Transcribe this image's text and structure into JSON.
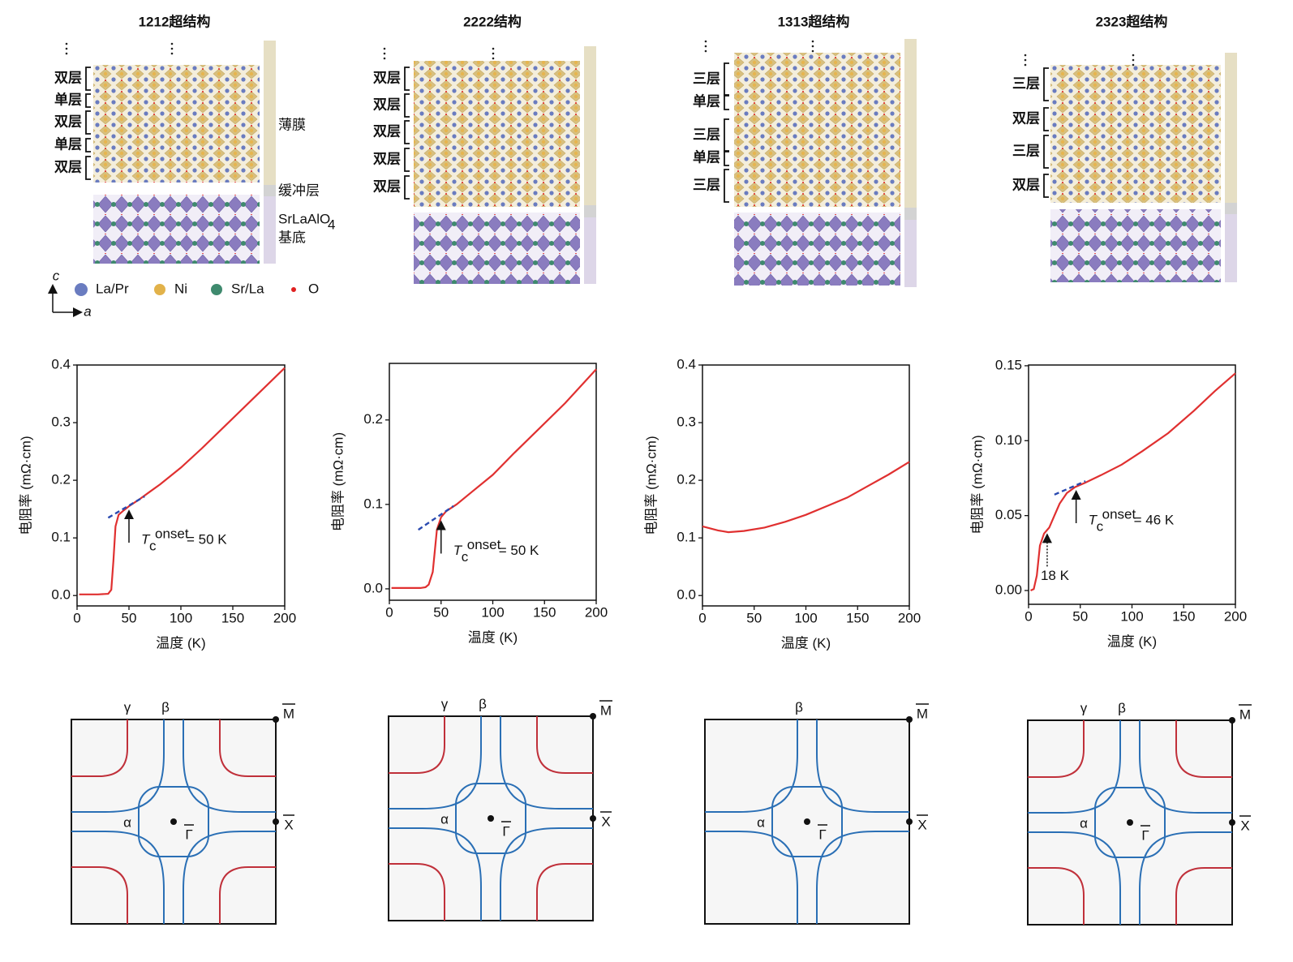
{
  "structures": [
    {
      "title": "1212超结构",
      "layers": [
        "双层",
        "单层",
        "双层",
        "单层",
        "双层"
      ],
      "film_label": "薄膜",
      "buffer_label": "缓冲层",
      "substrate_label": {
        "text": "SrLaAlO",
        "sub": "4",
        "line2": "基底"
      }
    },
    {
      "title": "2222结构",
      "layers": [
        "双层",
        "双层",
        "双层",
        "双层",
        "双层"
      ]
    },
    {
      "title": "1313超结构",
      "layers": [
        "三层",
        "单层",
        "三层",
        "单层",
        "三层"
      ]
    },
    {
      "title": "2323超结构",
      "layers": [
        "三层",
        "双层",
        "三层",
        "双层"
      ]
    }
  ],
  "legend": {
    "axis_c": "c",
    "axis_a": "a",
    "atoms": [
      {
        "name": "La/Pr",
        "color": "#6a7cc0"
      },
      {
        "name": "Ni",
        "color": "#e2b24a"
      },
      {
        "name": "Sr/La",
        "color": "#3f8a6e"
      },
      {
        "name": "O",
        "color": "#e02020"
      }
    ]
  },
  "chart_data": [
    {
      "type": "line",
      "xlabel": "温度 (K)",
      "ylabel": "电阻率 (mΩ·cm)",
      "xlim": [
        0,
        200
      ],
      "xticks": [
        0,
        50,
        100,
        150,
        200
      ],
      "ylim": [
        -0.018,
        0.4
      ],
      "yticks": [
        {
          "value": 0,
          "label": "0.0"
        },
        {
          "value": 0.1,
          "label": "0.1"
        },
        {
          "value": 0.2,
          "label": "0.2"
        },
        {
          "value": 0.3,
          "label": "0.3"
        },
        {
          "value": 0.4,
          "label": "0.4"
        }
      ],
      "series": [
        {
          "color": "#e03030",
          "x": [
            2,
            10,
            20,
            30,
            33,
            35,
            37,
            40,
            45,
            50,
            60,
            70,
            80,
            100,
            120,
            140,
            160,
            180,
            200
          ],
          "values": [
            0.002,
            0.002,
            0.002,
            0.003,
            0.01,
            0.06,
            0.12,
            0.14,
            0.148,
            0.155,
            0.167,
            0.18,
            0.193,
            0.222,
            0.255,
            0.29,
            0.325,
            0.36,
            0.395
          ]
        },
        {
          "color": "#2a4ab0",
          "dashed": true,
          "x": [
            30,
            65
          ],
          "values": [
            0.135,
            0.172
          ]
        }
      ],
      "annotations": [
        {
          "symbol": "T",
          "sub": "c",
          "sup": "onset",
          "text": "= 50 K",
          "arrow_x": 50,
          "arrow_style": "solid"
        }
      ]
    },
    {
      "type": "line",
      "xlabel": "温度 (K)",
      "ylabel": "电阻率 (mΩ·cm)",
      "xlim": [
        0,
        200
      ],
      "xticks": [
        0,
        50,
        100,
        150,
        200
      ],
      "ylim": [
        -0.0135,
        0.267
      ],
      "yticks": [
        {
          "value": 0,
          "label": "0.0"
        },
        {
          "value": 0.1,
          "label": "0.1"
        },
        {
          "value": 0.2,
          "label": "0.2"
        }
      ],
      "series": [
        {
          "color": "#e03030",
          "x": [
            2,
            10,
            20,
            30,
            35,
            38,
            42,
            46,
            50,
            55,
            65,
            80,
            100,
            120,
            145,
            170,
            200
          ],
          "values": [
            0.001,
            0.001,
            0.001,
            0.001,
            0.002,
            0.005,
            0.02,
            0.07,
            0.085,
            0.092,
            0.1,
            0.115,
            0.135,
            0.16,
            0.19,
            0.22,
            0.26
          ]
        },
        {
          "color": "#2a4ab0",
          "dashed": true,
          "x": [
            28,
            62
          ],
          "values": [
            0.07,
            0.098
          ]
        }
      ],
      "annotations": [
        {
          "symbol": "T",
          "sub": "c",
          "sup": "onset",
          "text": "= 50 K",
          "arrow_x": 50,
          "arrow_style": "solid"
        }
      ]
    },
    {
      "type": "line",
      "xlabel": "温度 (K)",
      "ylabel": "电阻率 (mΩ·cm)",
      "xlim": [
        0,
        200
      ],
      "xticks": [
        0,
        50,
        100,
        150,
        200
      ],
      "ylim": [
        -0.018,
        0.4
      ],
      "yticks": [
        {
          "value": 0,
          "label": "0.0"
        },
        {
          "value": 0.1,
          "label": "0.1"
        },
        {
          "value": 0.2,
          "label": "0.2"
        },
        {
          "value": 0.3,
          "label": "0.3"
        },
        {
          "value": 0.4,
          "label": "0.4"
        }
      ],
      "series": [
        {
          "color": "#e03030",
          "x": [
            0,
            15,
            25,
            40,
            60,
            80,
            100,
            120,
            140,
            160,
            180,
            200
          ],
          "values": [
            0.12,
            0.113,
            0.11,
            0.112,
            0.118,
            0.128,
            0.14,
            0.155,
            0.17,
            0.19,
            0.21,
            0.232
          ]
        }
      ],
      "annotations": []
    },
    {
      "type": "line",
      "xlabel": "温度 (K)",
      "ylabel": "电阻率 (mΩ·cm)",
      "xlim": [
        0,
        200
      ],
      "xticks": [
        0,
        50,
        100,
        150,
        200
      ],
      "ylim": [
        -0.0092,
        0.1505
      ],
      "yticks": [
        {
          "value": 0,
          "label": "0.00"
        },
        {
          "value": 0.05,
          "label": "0.05"
        },
        {
          "value": 0.1,
          "label": "0.10"
        },
        {
          "value": 0.15,
          "label": "0.15"
        }
      ],
      "series": [
        {
          "color": "#e03030",
          "x": [
            2,
            5,
            8,
            11,
            15,
            20,
            25,
            30,
            37,
            45,
            55,
            70,
            90,
            110,
            135,
            160,
            180,
            200
          ],
          "values": [
            0,
            0.001,
            0.01,
            0.03,
            0.038,
            0.042,
            0.05,
            0.058,
            0.065,
            0.069,
            0.072,
            0.077,
            0.084,
            0.093,
            0.105,
            0.12,
            0.133,
            0.145
          ]
        },
        {
          "color": "#2a4ab0",
          "dashed": true,
          "x": [
            25,
            55
          ],
          "values": [
            0.064,
            0.073
          ]
        }
      ],
      "annotations": [
        {
          "symbol": "T",
          "sub": "c",
          "sup": "onset",
          "text": "= 46 K",
          "arrow_x": 46,
          "arrow_style": "solid"
        },
        {
          "text": "18 K",
          "arrow_x": 18,
          "arrow_style": "dotted"
        }
      ]
    }
  ],
  "fermi_surfaces": [
    {
      "gamma": "γ",
      "beta": "β",
      "alpha": "α",
      "M": "M",
      "X": "X",
      "Gamma": "Γ"
    },
    {
      "gamma": "γ",
      "beta": "β",
      "alpha": "α",
      "M": "M",
      "X": "X",
      "Gamma": "Γ"
    },
    {
      "beta": "β",
      "alpha": "α",
      "M": "M",
      "X": "X",
      "Gamma": "Γ"
    },
    {
      "gamma": "γ",
      "beta": "β",
      "alpha": "α",
      "M": "M",
      "X": "X",
      "Gamma": "Γ"
    }
  ]
}
